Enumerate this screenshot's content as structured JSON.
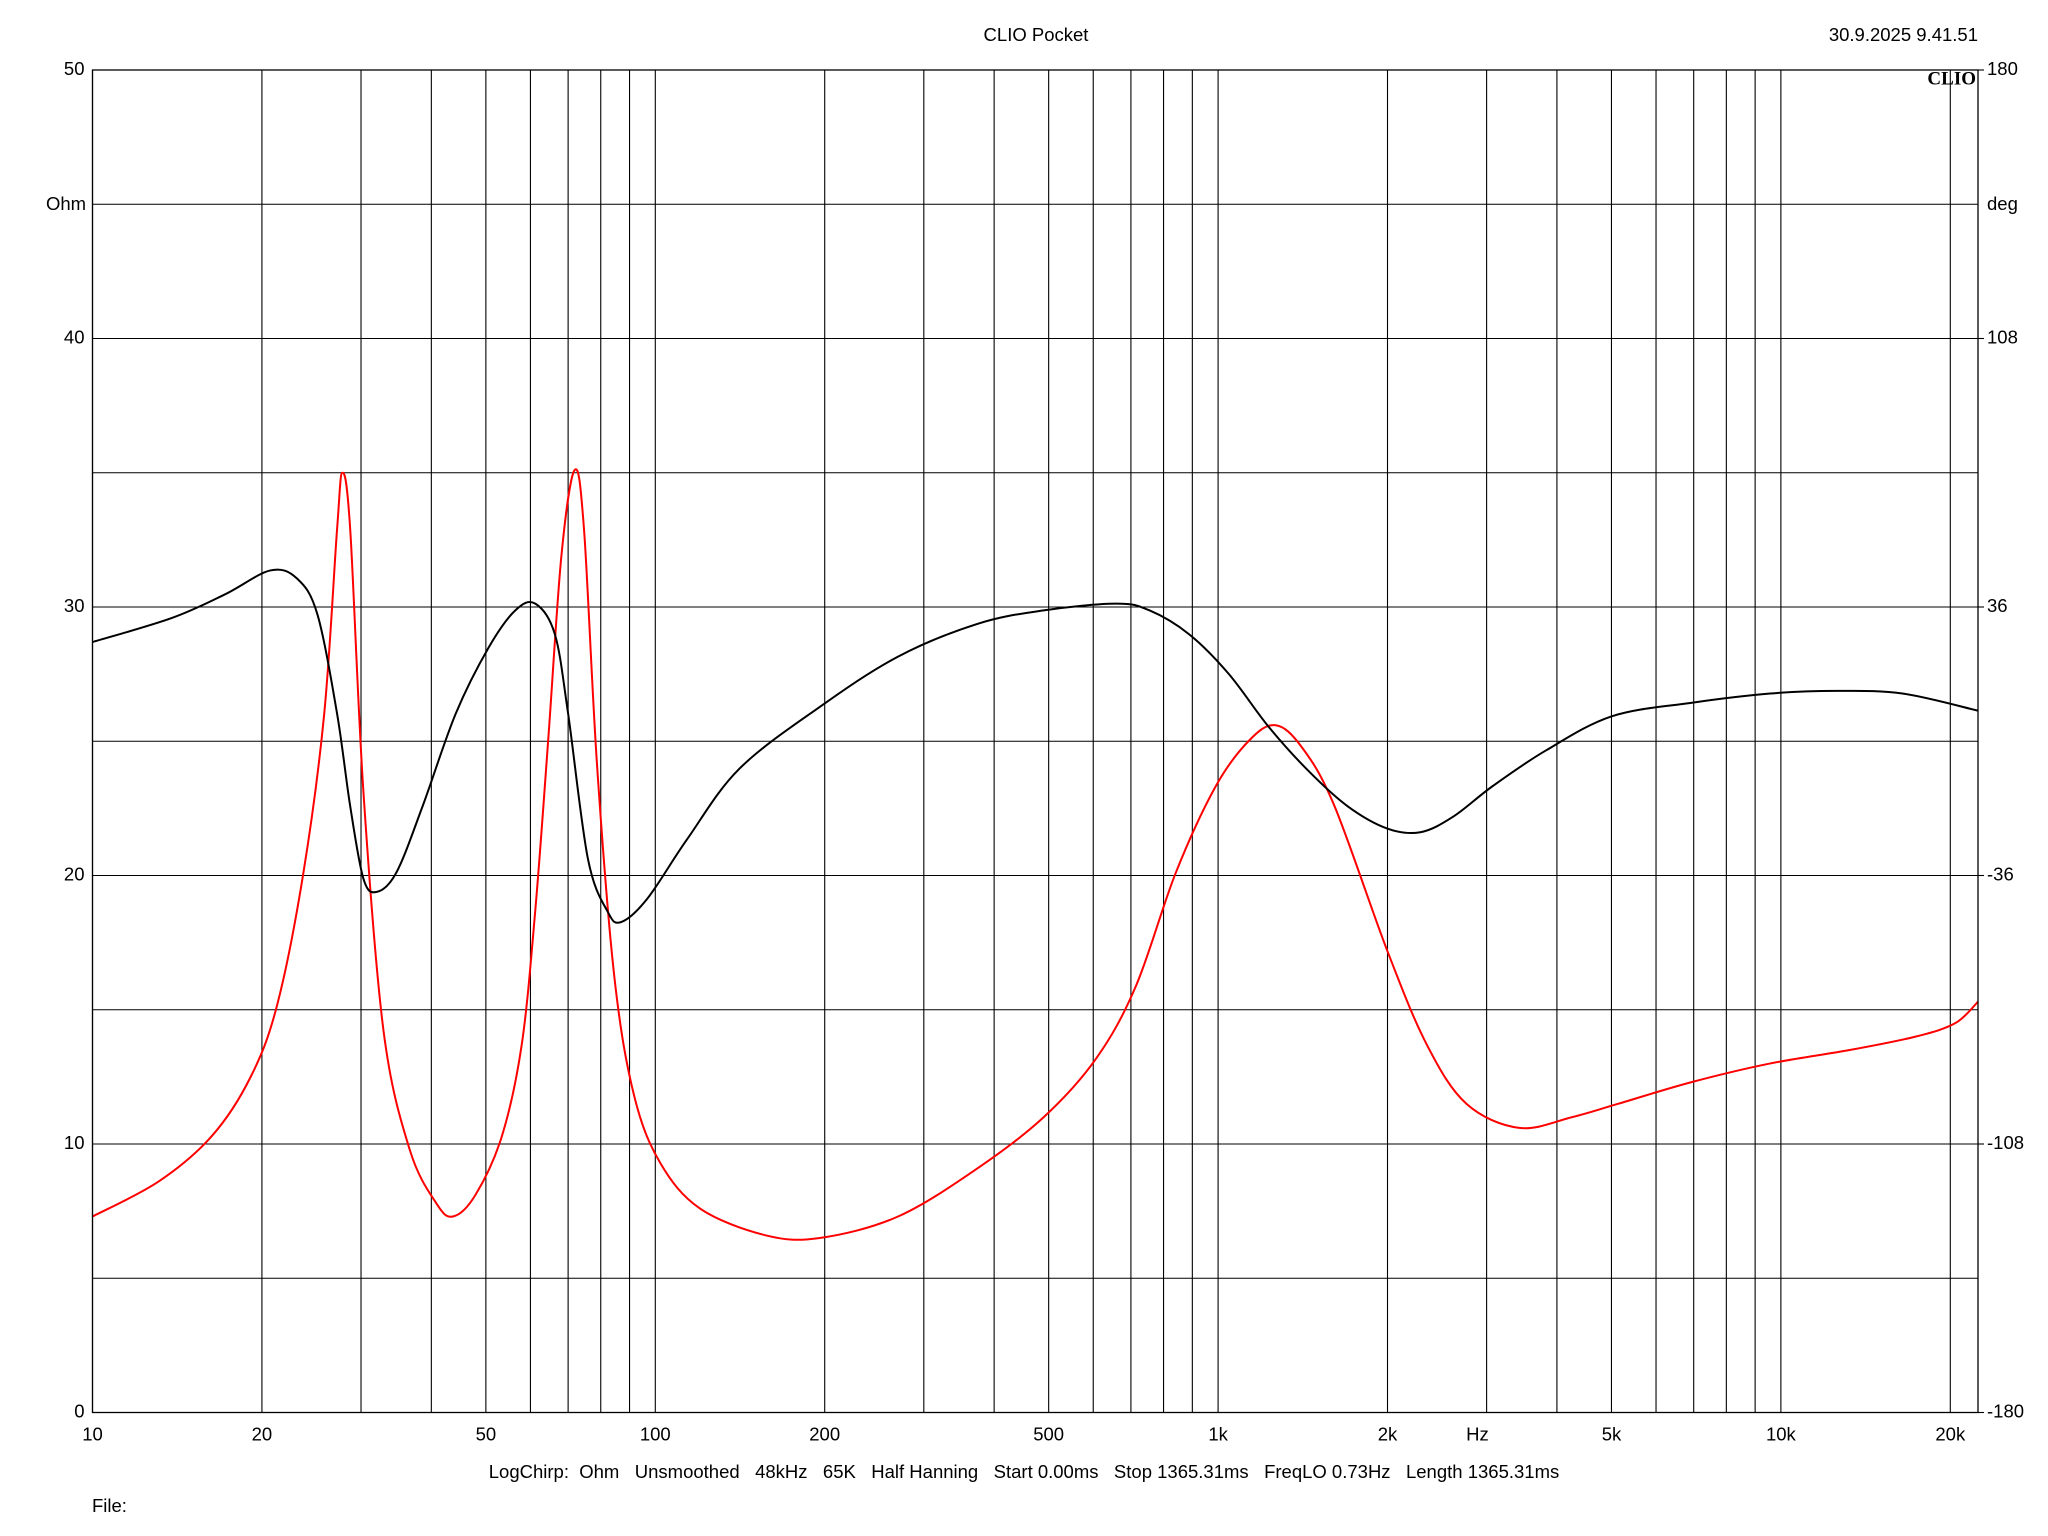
{
  "chart_data": {
    "type": "line",
    "title": "CLIO Pocket",
    "timestamp": "30.9.2025 9.41.51",
    "logo": "CLIO",
    "ylabel": "Ohm",
    "y2label": "deg",
    "xunit": "Hz",
    "footer": "LogChirp:  Ohm   Unsmoothed   48kHz   65K   Half Hanning   Start 0.00ms   Stop 1365.31ms   FreqLO 0.73Hz   Length 1365.31ms",
    "file_label": "File:",
    "xscale": "log",
    "grid": true,
    "xlim": [
      10,
      22400
    ],
    "xticks": [
      10,
      20,
      50,
      100,
      200,
      500,
      {
        "value": 1000,
        "label": "1k"
      },
      {
        "value": 2000,
        "label": "2k"
      },
      {
        "value": 5000,
        "label": "5k"
      },
      {
        "value": 10000,
        "label": "10k"
      },
      {
        "value": 20000,
        "label": "20k"
      }
    ],
    "xgrid_minor": [
      30,
      40,
      60,
      70,
      80,
      90,
      300,
      400,
      600,
      700,
      800,
      900,
      3000,
      4000,
      6000,
      7000,
      8000,
      9000
    ],
    "ylim": [
      0,
      50
    ],
    "yticks": [
      0,
      10,
      20,
      30,
      40,
      50
    ],
    "ygrid_minor": [
      5,
      15,
      25,
      35,
      45
    ],
    "y2lim": [
      -180,
      180
    ],
    "y2ticks": [
      180,
      108,
      36,
      -36,
      -108,
      -180
    ],
    "series": [
      {
        "color": "#ff0000",
        "axis": "y",
        "x": [
          10,
          13.1,
          16.3,
          19.1,
          21.3,
          23.7,
          25.8,
          27.2,
          27.8,
          28.7,
          30.3,
          32.9,
          36.6,
          40.8,
          43.7,
          47.9,
          53.4,
          57.9,
          61.2,
          64.5,
          68.1,
          71.9,
          74.7,
          78.8,
          84.6,
          91.7,
          102,
          120,
          157,
          196,
          270,
          374,
          490,
          608,
          715,
          841,
          989,
          1132,
          1262,
          1406,
          1609,
          1998,
          2349,
          2762,
          3429,
          4257,
          5144,
          6926,
          9577,
          13250,
          17350,
          20410,
          22400
        ],
        "values": [
          7.3,
          8.6,
          10.3,
          12.5,
          15.2,
          20.1,
          26.0,
          32.9,
          35.0,
          32.9,
          23.1,
          14.2,
          9.8,
          7.8,
          7.3,
          8.1,
          10.3,
          13.7,
          18.7,
          25.0,
          31.9,
          35.1,
          32.9,
          24.1,
          16.2,
          11.8,
          9.3,
          7.6,
          6.6,
          6.5,
          7.3,
          9.1,
          11.0,
          13.2,
          15.9,
          20.1,
          23.3,
          25.0,
          25.6,
          24.8,
          22.6,
          17.2,
          13.7,
          11.5,
          10.6,
          11.0,
          11.5,
          12.3,
          13.0,
          13.5,
          14.0,
          14.5,
          15.3
        ]
      },
      {
        "color": "#000000",
        "axis": "y2",
        "x": [
          10,
          13.8,
          17.2,
          20.7,
          23.1,
          25.1,
          27.2,
          28.7,
          30.3,
          32.0,
          34.7,
          38.6,
          44.2,
          50.6,
          56.4,
          61.2,
          66.3,
          70.0,
          75.9,
          82.3,
          86.9,
          96.8,
          114,
          141,
          196,
          270,
          374,
          490,
          659,
          755,
          888,
          1044,
          1228,
          1444,
          1698,
          1998,
          2287,
          2618,
          3077,
          3821,
          5006,
          6926,
          9577,
          12550,
          16440,
          22400
        ],
        "values": [
          26.6,
          33.0,
          39.4,
          45.8,
          43.6,
          34.0,
          7.4,
          -17.4,
          -36.9,
          -40.4,
          -35.1,
          -17.4,
          7.4,
          25.2,
          35.1,
          36.9,
          28.7,
          7.4,
          -31.5,
          -45.7,
          -48.5,
          -42.2,
          -26.2,
          -7.4,
          9.2,
          22.7,
          31.5,
          35.1,
          36.9,
          35.1,
          28.7,
          18.1,
          4.0,
          -7.8,
          -17.4,
          -23.4,
          -24.4,
          -20.2,
          -12.0,
          -2.5,
          6.7,
          10.3,
          12.8,
          13.5,
          12.8,
          8.2
        ]
      }
    ]
  }
}
